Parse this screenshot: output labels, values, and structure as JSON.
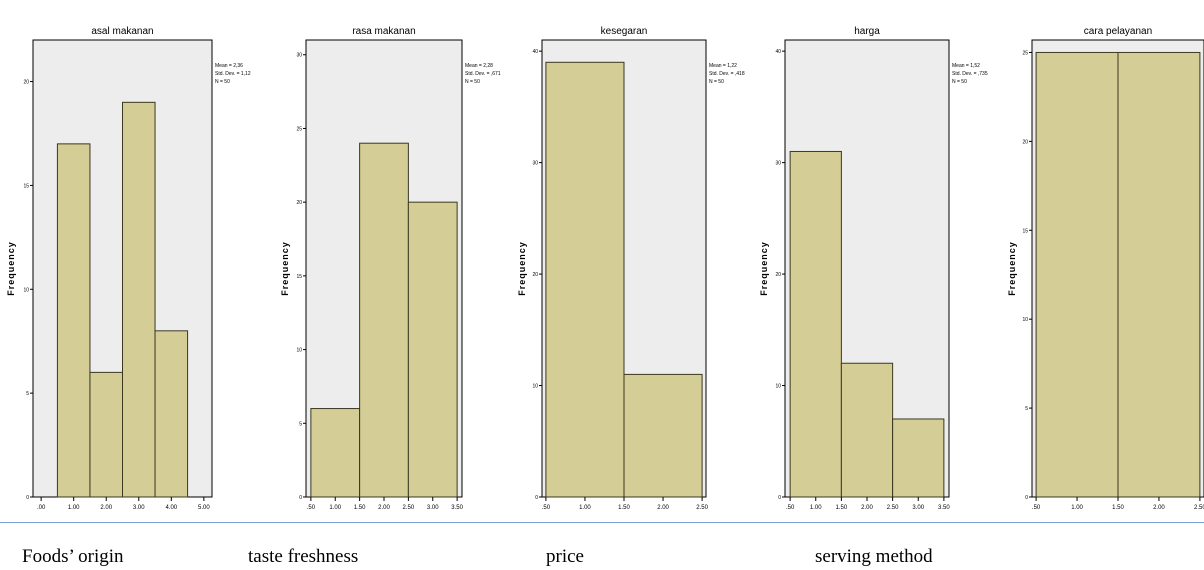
{
  "colors": {
    "bar_fill": "#d4cd95",
    "bar_stroke": "#3a3820",
    "plot_bg": "#ededed",
    "axis": "#000000",
    "divider": "#7b9fd2"
  },
  "chart_data": [
    {
      "type": "bar",
      "title": "asal makanan",
      "ylabel": "Frequency",
      "ylim": [
        0,
        22
      ],
      "yticks": [
        0,
        5,
        10,
        15,
        20
      ],
      "ytick_labels": [
        "0",
        "5",
        "10",
        "15",
        "20"
      ],
      "xlim": [
        -0.25,
        5.25
      ],
      "xticks": [
        0,
        1,
        2,
        3,
        4,
        5
      ],
      "xtick_labels": [
        ".00",
        "1.00",
        "2.00",
        "3.00",
        "4.00",
        "5.00"
      ],
      "bins": [
        [
          0.5,
          1.5
        ],
        [
          1.5,
          2.5
        ],
        [
          2.5,
          3.5
        ],
        [
          3.5,
          4.5
        ]
      ],
      "values": [
        17,
        6,
        19,
        8
      ],
      "stats": [
        "Mean = 2,36",
        "Std. Dev. = 1,12",
        "N = 50"
      ],
      "grid": false
    },
    {
      "type": "bar",
      "title": "rasa makanan",
      "ylabel": "Frequency",
      "ylim": [
        0,
        31
      ],
      "yticks": [
        0,
        5,
        10,
        15,
        20,
        25,
        30
      ],
      "ytick_labels": [
        "0",
        "5",
        "10",
        "15",
        "20",
        "25",
        "30"
      ],
      "xlim": [
        0.4,
        3.6
      ],
      "xticks": [
        0.5,
        1.0,
        1.5,
        2.0,
        2.5,
        3.0,
        3.5
      ],
      "xtick_labels": [
        ".50",
        "1.00",
        "1.50",
        "2.00",
        "2.50",
        "3.00",
        "3.50"
      ],
      "bins": [
        [
          0.5,
          1.5
        ],
        [
          1.5,
          2.5
        ],
        [
          2.5,
          3.5
        ]
      ],
      "values": [
        6,
        24,
        20
      ],
      "stats": [
        "Mean = 2,28",
        "Std. Dev. = ,671",
        "N = 50"
      ],
      "grid": false
    },
    {
      "type": "bar",
      "title": "kesegaran",
      "ylabel": "Frequency",
      "ylim": [
        0,
        41
      ],
      "yticks": [
        0,
        10,
        20,
        30,
        40
      ],
      "ytick_labels": [
        "0",
        "10",
        "20",
        "30",
        "40"
      ],
      "xlim": [
        0.45,
        2.55
      ],
      "xticks": [
        0.5,
        1.0,
        1.5,
        2.0,
        2.5
      ],
      "xtick_labels": [
        ".50",
        "1.00",
        "1.50",
        "2.00",
        "2.50"
      ],
      "bins": [
        [
          0.5,
          1.5
        ],
        [
          1.5,
          2.5
        ]
      ],
      "values": [
        39,
        11
      ],
      "stats": [
        "Mean = 1,22",
        "Std. Dev. = ,418",
        "N = 50"
      ],
      "grid": false
    },
    {
      "type": "bar",
      "title": "harga",
      "ylabel": "Frequency",
      "ylim": [
        0,
        41
      ],
      "yticks": [
        0,
        10,
        20,
        30,
        40
      ],
      "ytick_labels": [
        "0",
        "10",
        "20",
        "30",
        "40"
      ],
      "xlim": [
        0.4,
        3.6
      ],
      "xticks": [
        0.5,
        1.0,
        1.5,
        2.0,
        2.5,
        3.0,
        3.5
      ],
      "xtick_labels": [
        ".50",
        "1.00",
        "1.50",
        "2.00",
        "2.50",
        "3.00",
        "3.50"
      ],
      "bins": [
        [
          0.5,
          1.5
        ],
        [
          1.5,
          2.5
        ],
        [
          2.5,
          3.5
        ]
      ],
      "values": [
        31,
        12,
        7
      ],
      "stats": [
        "Mean = 1,52",
        "Std. Dev. = ,735",
        "N = 50"
      ],
      "grid": false
    },
    {
      "type": "bar",
      "title": "cara pelayanan",
      "ylabel": "Frequency",
      "ylim": [
        0,
        25.7
      ],
      "yticks": [
        0,
        5,
        10,
        15,
        20,
        25
      ],
      "ytick_labels": [
        "0",
        "5",
        "10",
        "15",
        "20",
        "25"
      ],
      "xlim": [
        0.45,
        2.55
      ],
      "xticks": [
        0.5,
        1.0,
        1.5,
        2.0,
        2.5
      ],
      "xtick_labels": [
        ".50",
        "1.00",
        "1.50",
        "2.00",
        "2.50"
      ],
      "bins": [
        [
          0.5,
          1.5
        ],
        [
          1.5,
          2.5
        ]
      ],
      "values": [
        25,
        25
      ],
      "stats": [
        "Mean = 1,5",
        "Std. Dev. =",
        "N = 50"
      ],
      "grid": false
    }
  ],
  "captions": [
    "Foods’ origin",
    "taste freshness",
    "price",
    "serving method"
  ]
}
